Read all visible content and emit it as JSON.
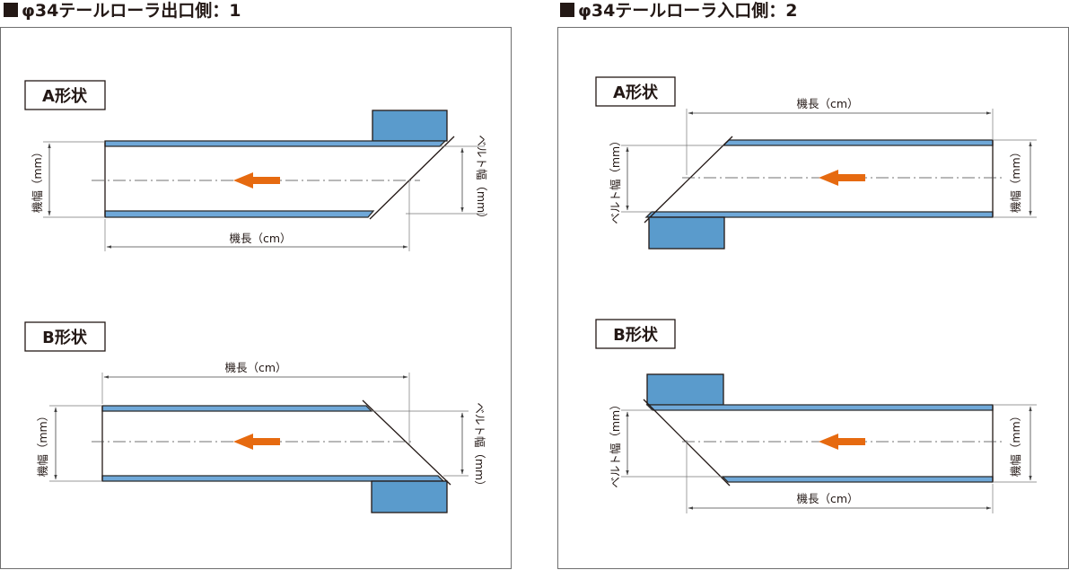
{
  "left": {
    "heading": "φ34テールローラ出口側：1",
    "shape_a": {
      "label": "A形状",
      "width_label": "機幅（mm）",
      "belt_width_label": "ベルト幅（mm）",
      "length_label": "機長（cm）"
    },
    "shape_b": {
      "label": "B形状",
      "width_label": "機幅（mm）",
      "belt_width_label": "ベルト幅（mm）",
      "length_label": "機長（cm）"
    }
  },
  "right": {
    "heading": "φ34テールローラ入口側：2",
    "shape_a": {
      "label": "A形状",
      "width_label": "機幅（mm）",
      "belt_width_label": "ベルト幅（mm）",
      "length_label": "機長（cm）"
    },
    "shape_b": {
      "label": "B形状",
      "width_label": "機幅（mm）",
      "belt_width_label": "ベルト幅（mm）",
      "length_label": "機長（cm）"
    }
  },
  "colors": {
    "belt": "#6fa8d8",
    "box": "#5a9bcc",
    "arrow": "#e66a10",
    "line": "#231815"
  },
  "icons": {
    "heading_marker": "black-square",
    "flow_direction": "left-arrow"
  }
}
